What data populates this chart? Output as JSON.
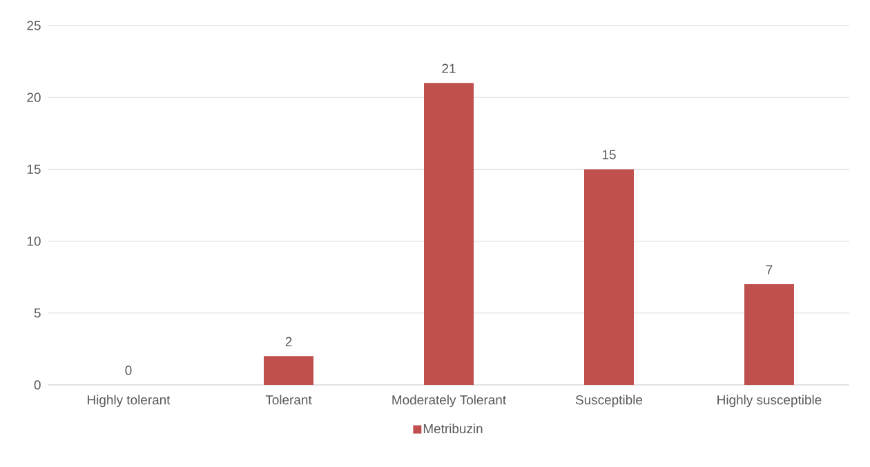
{
  "chart_data": {
    "type": "bar",
    "categories": [
      "Highly tolerant",
      "Tolerant",
      "Moderately Tolerant",
      "Susceptible",
      "Highly susceptible"
    ],
    "series": [
      {
        "name": "Metribuzin",
        "color": "#c0504d",
        "values": [
          0,
          2,
          21,
          15,
          7
        ]
      }
    ],
    "ylim": [
      0,
      25
    ],
    "yticks": [
      0,
      5,
      10,
      15,
      20,
      25
    ],
    "grid": "y",
    "legend": "bottom",
    "data_labels": true
  }
}
